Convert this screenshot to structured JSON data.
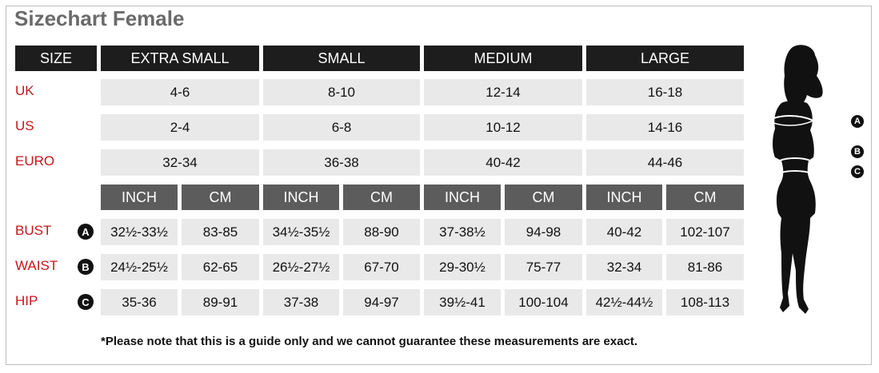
{
  "title": "Sizechart Female",
  "header": {
    "size_label": "SIZE",
    "sizes": [
      "EXTRA SMALL",
      "SMALL",
      "MEDIUM",
      "LARGE"
    ]
  },
  "size_rows": [
    {
      "label": "UK",
      "values": [
        "4-6",
        "8-10",
        "12-14",
        "16-18"
      ]
    },
    {
      "label": "US",
      "values": [
        "2-4",
        "6-8",
        "10-12",
        "14-16"
      ]
    },
    {
      "label": "EURO",
      "values": [
        "32-34",
        "36-38",
        "40-42",
        "44-46"
      ]
    }
  ],
  "units": [
    "INCH",
    "CM"
  ],
  "measure_rows": [
    {
      "label": "BUST",
      "marker": "A",
      "values": [
        "32½-33½",
        "83-85",
        "34½-35½",
        "88-90",
        "37-38½",
        "94-98",
        "40-42",
        "102-107"
      ]
    },
    {
      "label": "WAIST",
      "marker": "B",
      "values": [
        "24½-25½",
        "62-65",
        "26½-27½",
        "67-70",
        "29-30½",
        "75-77",
        "32-34",
        "81-86"
      ]
    },
    {
      "label": "HIP",
      "marker": "C",
      "values": [
        "35-36",
        "89-91",
        "37-38",
        "94-97",
        "39½-41",
        "100-104",
        "42½-44½",
        "108-113"
      ]
    }
  ],
  "figure_markers": [
    "A",
    "B",
    "C"
  ],
  "note": "*Please note that this is a guide only and we cannot guarantee these measurements are exact.",
  "colors": {
    "header": "#1d1d1d",
    "unit_header": "#5c5c5c",
    "cell": "#e9e9e9",
    "label": "#c4161c"
  }
}
